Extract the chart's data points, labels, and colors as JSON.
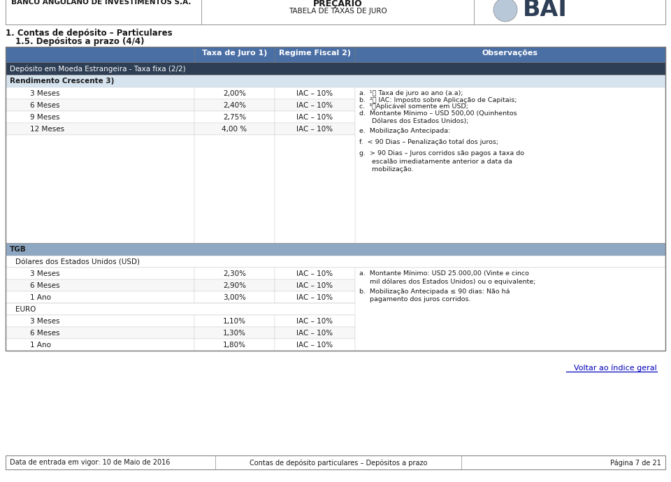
{
  "header_title_left": "BANCO ANGOLANO DE INVESTIMENTOS S.A.",
  "header_title_center_line1": "PREÇÁRIO",
  "header_title_center_line2": "TABELA DE TAXAS DE JURO",
  "section1": "1. Contas de depósito – Particulares",
  "section2": "1.5. Depósitos a prazo (4/4)",
  "col_headers": [
    "Taxa de Juro 1)",
    "Regime Fiscal 2)",
    "Observações"
  ],
  "dark_row1": "Depósito em Moeda Estrangeira - Taxa fixa (2/2)",
  "bold_row1": "Rendimento Crescente 3)",
  "rc_rows": [
    [
      "3 Meses",
      "2,00%",
      "IAC – 10%"
    ],
    [
      "6 Meses",
      "2,40%",
      "IAC – 10%"
    ],
    [
      "9 Meses",
      "2,75%",
      "IAC – 10%"
    ],
    [
      "12 Meses",
      "4,00 %",
      "IAC – 10%"
    ]
  ],
  "medium_row1": "TGB",
  "subheader_usd": "Dólares dos Estados Unidos (USD)",
  "tgb_usd_rows": [
    [
      "3 Meses",
      "2,30%",
      "IAC – 10%"
    ],
    [
      "6 Meses",
      "2,90%",
      "IAC – 10%"
    ],
    [
      "1 Ano",
      "3,00%",
      "IAC – 10%"
    ]
  ],
  "subheader_euro": "EURO",
  "tgb_euro_rows": [
    [
      "3 Meses",
      "1,10%",
      "IAC – 10%"
    ],
    [
      "6 Meses",
      "1,30%",
      "IAC – 10%"
    ],
    [
      "1 Ano",
      "1,80%",
      "IAC – 10%"
    ]
  ],
  "voltar_text": "Voltar ao índice geral",
  "footer_left": "Data de entrada em vigor: 10 de Maio de 2016",
  "footer_center": "Contas de depósito particulares – Depósitos a prazo",
  "footer_right": "Página 7 de 21",
  "color_dark_navy": "#2D3E55",
  "color_medium_blue": "#8EA8C3",
  "color_col_header": "#4A6FA5",
  "color_rc_subheader": "#D6E4F0",
  "color_voltar": "#0000BB"
}
